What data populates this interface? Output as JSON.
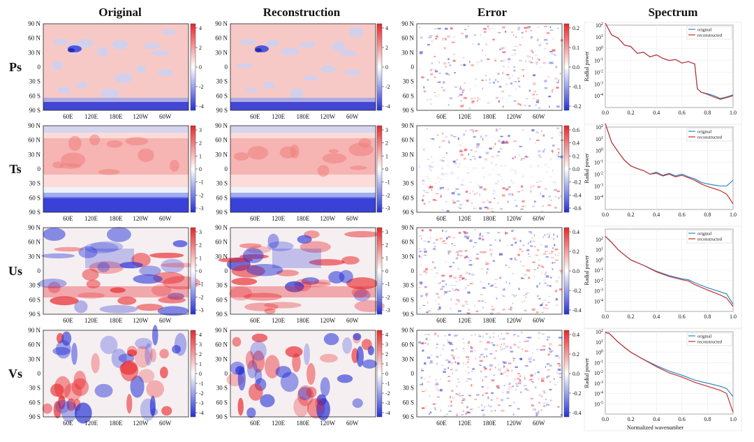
{
  "headers": [
    "Original",
    "Reconstruction",
    "Error",
    "Spectrum"
  ],
  "rows": [
    "Ps",
    "Ts",
    "Us",
    "Vs"
  ],
  "map_axes": {
    "lat_ticks": [
      "90 N",
      "60 N",
      "30 N",
      "0",
      "30 S",
      "60 S",
      "90 S"
    ],
    "lon_ticks": [
      "60E",
      "120E",
      "180E",
      "120W",
      "60W"
    ]
  },
  "colorbars": {
    "Ps": {
      "field": [
        "4",
        "2",
        "0",
        "-2",
        "-4"
      ],
      "error": [
        "0.2",
        "0.1",
        "0.0",
        "-0.1",
        "-0.2"
      ]
    },
    "Ts": {
      "field": [
        "3",
        "2",
        "1",
        "0",
        "-1",
        "-2",
        "-3"
      ],
      "error": [
        "0.6",
        "0.4",
        "0.2",
        "0.0",
        "-0.2",
        "-0.4",
        "-0.6"
      ]
    },
    "Us": {
      "field": [
        "3",
        "2",
        "1",
        "0",
        "-1",
        "-2",
        "-3"
      ],
      "error": [
        "0.4",
        "0.2",
        "0.0",
        "-0.2",
        "-0.4"
      ]
    },
    "Vs": {
      "field": [
        "4",
        "3",
        "2",
        "1",
        "0",
        "-1",
        "-2",
        "-3",
        "-4"
      ],
      "error": [
        "0.4",
        "0.2",
        "0.0",
        "-0.2",
        "-0.4"
      ]
    }
  },
  "colors": {
    "positive": "#e8262a",
    "negative": "#2330d6",
    "original_line": "#2a88c8",
    "reconstructed_line": "#c8302f"
  },
  "chart_data": [
    {
      "type": "line",
      "row": "Ps",
      "xlabel": "",
      "ylabel": "Radial power",
      "yscale": "log",
      "xlim": [
        0.0,
        1.0
      ],
      "x_ticks": [
        "0.0",
        "0.2",
        "0.4",
        "0.6",
        "0.8",
        "1.0"
      ],
      "ylim_exp": [
        -5,
        2
      ],
      "y_ticks": [
        "10^2",
        "10^1",
        "10^0",
        "10^-1",
        "10^-2",
        "10^-3",
        "10^-4"
      ],
      "legend": "top-right",
      "series": [
        {
          "name": "original",
          "x": [
            0.0,
            0.05,
            0.1,
            0.15,
            0.2,
            0.25,
            0.3,
            0.35,
            0.4,
            0.45,
            0.5,
            0.55,
            0.6,
            0.65,
            0.7,
            0.72,
            0.75,
            0.8,
            0.85,
            0.9,
            0.95,
            1.0
          ],
          "y": [
            150,
            15,
            8,
            2,
            1.5,
            0.4,
            0.5,
            0.2,
            0.3,
            0.15,
            0.1,
            0.12,
            0.06,
            0.08,
            0.05,
            0.0004,
            0.0002,
            0.00015,
            0.0001,
            6e-05,
            8e-05,
            0.00012
          ]
        },
        {
          "name": "reconstructed",
          "x": [
            0.0,
            0.05,
            0.1,
            0.15,
            0.2,
            0.25,
            0.3,
            0.35,
            0.4,
            0.45,
            0.5,
            0.55,
            0.6,
            0.65,
            0.7,
            0.72,
            0.75,
            0.8,
            0.85,
            0.9,
            0.95,
            1.0
          ],
          "y": [
            150,
            15,
            8,
            2,
            1.5,
            0.4,
            0.5,
            0.2,
            0.3,
            0.15,
            0.1,
            0.12,
            0.06,
            0.08,
            0.05,
            0.0004,
            0.0002,
            0.00013,
            8e-05,
            5e-05,
            7e-05,
            0.0001
          ]
        }
      ]
    },
    {
      "type": "line",
      "row": "Ts",
      "xlabel": "",
      "ylabel": "Radial power",
      "yscale": "log",
      "xlim": [
        0.0,
        1.0
      ],
      "x_ticks": [
        "0.0",
        "0.2",
        "0.4",
        "0.6",
        "0.8",
        "1.0"
      ],
      "ylim_exp": [
        -5,
        2
      ],
      "y_ticks": [
        "10^2",
        "10^1",
        "10^0",
        "10^-1",
        "10^-2",
        "10^-3",
        "10^-4"
      ],
      "legend": "top-right",
      "series": [
        {
          "name": "original",
          "x": [
            0.0,
            0.05,
            0.1,
            0.15,
            0.2,
            0.25,
            0.3,
            0.35,
            0.4,
            0.45,
            0.5,
            0.55,
            0.6,
            0.65,
            0.7,
            0.75,
            0.8,
            0.85,
            0.9,
            0.95,
            1.0
          ],
          "y": [
            200,
            5,
            0.8,
            0.15,
            0.05,
            0.03,
            0.02,
            0.01,
            0.015,
            0.008,
            0.012,
            0.007,
            0.01,
            0.006,
            0.004,
            0.002,
            0.0015,
            0.0012,
            0.001,
            0.001,
            0.003
          ]
        },
        {
          "name": "reconstructed",
          "x": [
            0.0,
            0.05,
            0.1,
            0.15,
            0.2,
            0.25,
            0.3,
            0.35,
            0.4,
            0.45,
            0.5,
            0.55,
            0.6,
            0.65,
            0.7,
            0.75,
            0.8,
            0.85,
            0.9,
            0.95,
            1.0
          ],
          "y": [
            200,
            5,
            0.8,
            0.15,
            0.05,
            0.03,
            0.02,
            0.01,
            0.012,
            0.007,
            0.01,
            0.006,
            0.008,
            0.005,
            0.003,
            0.0015,
            0.0009,
            0.0006,
            0.0004,
            0.0002,
            3e-05
          ]
        }
      ]
    },
    {
      "type": "line",
      "row": "Us",
      "xlabel": "",
      "ylabel": "Radial power",
      "yscale": "log",
      "xlim": [
        0.0,
        1.0
      ],
      "x_ticks": [
        "0.0",
        "0.2",
        "0.4",
        "0.6",
        "0.8",
        "1.0"
      ],
      "ylim_exp": [
        -5,
        3
      ],
      "y_ticks": [
        "10^2",
        "10^1",
        "10^0",
        "10^-1",
        "10^-2",
        "10^-3",
        "10^-4"
      ],
      "legend": "top-right",
      "series": [
        {
          "name": "original",
          "x": [
            0.0,
            0.05,
            0.1,
            0.15,
            0.2,
            0.3,
            0.4,
            0.5,
            0.6,
            0.65,
            0.7,
            0.8,
            0.9,
            0.95,
            1.0
          ],
          "y": [
            200,
            50,
            10,
            3,
            1,
            0.3,
            0.08,
            0.03,
            0.015,
            0.012,
            0.006,
            0.002,
            0.0008,
            0.0005,
            5e-05
          ]
        },
        {
          "name": "reconstructed",
          "x": [
            0.0,
            0.05,
            0.1,
            0.15,
            0.2,
            0.3,
            0.4,
            0.5,
            0.6,
            0.65,
            0.7,
            0.8,
            0.9,
            0.95,
            1.0
          ],
          "y": [
            200,
            50,
            10,
            3,
            1,
            0.3,
            0.07,
            0.025,
            0.012,
            0.009,
            0.004,
            0.0012,
            0.0004,
            0.0002,
            3e-05
          ]
        }
      ]
    },
    {
      "type": "line",
      "row": "Vs",
      "xlabel": "Normalized wavenumber",
      "ylabel": "Radial power",
      "yscale": "log",
      "xlim": [
        0.0,
        1.0
      ],
      "x_ticks": [
        "0.0",
        "0.2",
        "0.4",
        "0.6",
        "0.8",
        "1.0"
      ],
      "ylim_exp": [
        -6,
        2
      ],
      "y_ticks": [
        "10^2",
        "10^1",
        "10^0",
        "10^-1",
        "10^-2",
        "10^-3",
        "10^-4",
        "10^-5"
      ],
      "legend": "top-right",
      "series": [
        {
          "name": "original",
          "x": [
            0.0,
            0.03,
            0.05,
            0.1,
            0.15,
            0.2,
            0.3,
            0.4,
            0.5,
            0.6,
            0.7,
            0.8,
            0.9,
            0.95,
            1.0
          ],
          "y": [
            80,
            70,
            40,
            10,
            3,
            1,
            0.2,
            0.05,
            0.015,
            0.006,
            0.002,
            0.001,
            0.0005,
            0.0003,
            5e-05
          ]
        },
        {
          "name": "reconstructed",
          "x": [
            0.0,
            0.03,
            0.05,
            0.1,
            0.15,
            0.2,
            0.3,
            0.4,
            0.5,
            0.6,
            0.7,
            0.8,
            0.9,
            0.95,
            1.0
          ],
          "y": [
            80,
            70,
            40,
            10,
            3,
            1,
            0.2,
            0.04,
            0.01,
            0.004,
            0.0012,
            0.0005,
            0.0002,
            0.0001,
            1.5e-06
          ]
        }
      ]
    }
  ]
}
